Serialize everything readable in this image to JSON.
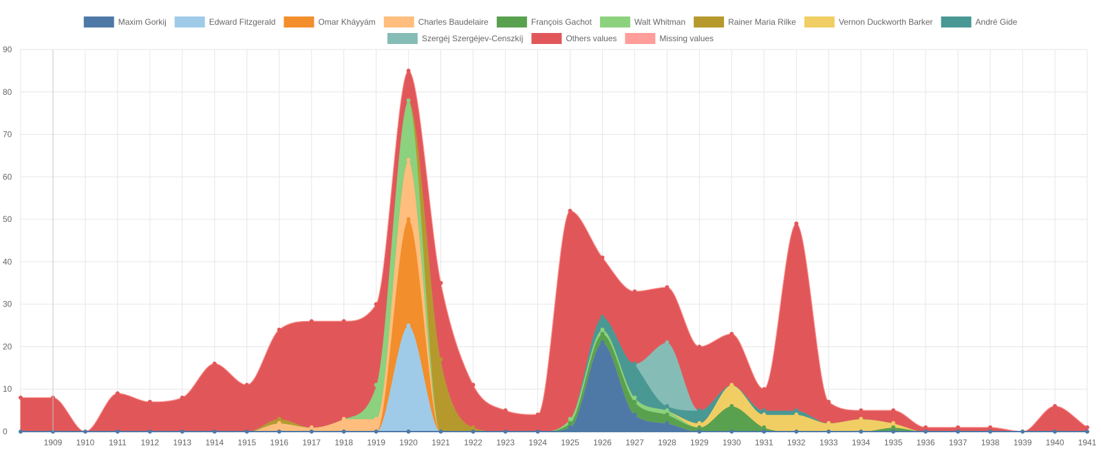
{
  "chart_data": {
    "type": "area",
    "stacked": true,
    "smooth": true,
    "x": [
      "1908",
      "1909",
      "1910",
      "1911",
      "1912",
      "1913",
      "1914",
      "1915",
      "1916",
      "1917",
      "1918",
      "1919",
      "1920",
      "1921",
      "1922",
      "1923",
      "1924",
      "1925",
      "1926",
      "1927",
      "1928",
      "1929",
      "1930",
      "1931",
      "1932",
      "1933",
      "1934",
      "1935",
      "1936",
      "1937",
      "1938",
      "1939",
      "1940",
      "1941"
    ],
    "x_tick_labels": [
      "1909",
      "1910",
      "1911",
      "1912",
      "1913",
      "1914",
      "1915",
      "1916",
      "1917",
      "1918",
      "1919",
      "1920",
      "1921",
      "1922",
      "1923",
      "1924",
      "1925",
      "1926",
      "1927",
      "1928",
      "1929",
      "1930",
      "1931",
      "1932",
      "1933",
      "1934",
      "1935",
      "1936",
      "1937",
      "1938",
      "1939",
      "1940",
      "1941"
    ],
    "ylim": [
      0,
      90
    ],
    "y_ticks": [
      "0",
      "10",
      "20",
      "30",
      "40",
      "50",
      "60",
      "70",
      "80",
      "90"
    ],
    "grid": true,
    "legend_position": "top",
    "series": [
      {
        "name": "Maxim Gorkij",
        "color": "#4e79a7",
        "values": [
          0,
          0,
          0,
          0,
          0,
          0,
          0,
          0,
          0,
          0,
          0,
          0,
          0,
          0,
          0,
          0,
          0,
          1,
          21,
          4,
          2,
          0,
          0,
          0,
          0,
          0,
          0,
          0,
          0,
          0,
          0,
          0,
          0,
          0
        ]
      },
      {
        "name": "Edward Fitzgerald",
        "color": "#a0cbe8",
        "values": [
          0,
          0,
          0,
          0,
          0,
          0,
          0,
          0,
          0,
          0,
          0,
          0,
          25,
          0,
          0,
          0,
          0,
          0,
          0,
          0,
          0,
          0,
          0,
          0,
          0,
          0,
          0,
          0,
          0,
          0,
          0,
          0,
          0,
          0
        ]
      },
      {
        "name": "Omar Kháyyám",
        "color": "#f28e2b",
        "values": [
          0,
          0,
          0,
          0,
          0,
          0,
          0,
          0,
          0,
          0,
          0,
          0,
          25,
          0,
          0,
          0,
          0,
          0,
          0,
          0,
          0,
          0,
          0,
          0,
          0,
          0,
          0,
          0,
          0,
          0,
          0,
          0,
          0,
          0
        ]
      },
      {
        "name": "Charles Baudelaire",
        "color": "#ffbe7d",
        "values": [
          0,
          0,
          0,
          0,
          0,
          0,
          0,
          0,
          2,
          1,
          3,
          3,
          14,
          0,
          0,
          0,
          0,
          0,
          0,
          0,
          0,
          0,
          0,
          0,
          0,
          0,
          0,
          0,
          0,
          0,
          0,
          0,
          0,
          0
        ]
      },
      {
        "name": "François Gachot",
        "color": "#59a14f",
        "values": [
          0,
          0,
          0,
          0,
          0,
          0,
          0,
          0,
          0,
          0,
          0,
          0,
          0,
          0,
          0,
          0,
          0,
          1,
          2,
          3,
          2,
          1,
          6,
          1,
          0,
          0,
          0,
          1,
          0,
          0,
          0,
          0,
          0,
          0
        ]
      },
      {
        "name": "Walt Whitman",
        "color": "#8cd17d",
        "values": [
          0,
          0,
          0,
          0,
          0,
          0,
          0,
          0,
          0,
          0,
          0,
          8,
          14,
          0,
          0,
          0,
          0,
          1,
          1,
          1,
          1,
          0,
          0,
          0,
          0,
          0,
          0,
          0,
          0,
          0,
          0,
          0,
          0,
          0
        ]
      },
      {
        "name": "Rainer Maria Rilke",
        "color": "#b6992d",
        "values": [
          0,
          0,
          0,
          0,
          0,
          0,
          0,
          0,
          1,
          0,
          0,
          0,
          0,
          17,
          1,
          0,
          0,
          0,
          0,
          0,
          0,
          0,
          0,
          0,
          0,
          0,
          0,
          0,
          0,
          0,
          0,
          0,
          0,
          0
        ]
      },
      {
        "name": "Vernon Duckworth Barker",
        "color": "#f1ce63",
        "values": [
          0,
          0,
          0,
          0,
          0,
          0,
          0,
          0,
          0,
          0,
          0,
          0,
          0,
          0,
          0,
          0,
          0,
          0,
          0,
          0,
          0,
          1,
          5,
          3,
          4,
          2,
          3,
          1,
          0,
          0,
          0,
          0,
          0,
          0
        ]
      },
      {
        "name": "André Gide",
        "color": "#499894",
        "values": [
          0,
          0,
          0,
          0,
          0,
          0,
          0,
          0,
          0,
          0,
          0,
          0,
          0,
          0,
          0,
          0,
          0,
          0,
          3,
          8,
          1,
          3,
          0,
          1,
          1,
          0,
          0,
          0,
          0,
          0,
          0,
          0,
          0,
          0
        ]
      },
      {
        "name": "Szergéj Szergéjev-Censzkíj",
        "color": "#86bcb6",
        "values": [
          0,
          0,
          0,
          0,
          0,
          0,
          0,
          0,
          0,
          0,
          0,
          0,
          0,
          0,
          0,
          0,
          0,
          0,
          0,
          0,
          15,
          0,
          0,
          0,
          0,
          0,
          0,
          0,
          0,
          0,
          0,
          0,
          0,
          0
        ]
      },
      {
        "name": "Others values",
        "color": "#e15759",
        "values": [
          8,
          8,
          0,
          9,
          7,
          8,
          16,
          11,
          21,
          25,
          23,
          19,
          7,
          18,
          10,
          5,
          4,
          49,
          14,
          17,
          13,
          15,
          12,
          5,
          44,
          5,
          2,
          3,
          1,
          1,
          1,
          0,
          6,
          1
        ]
      },
      {
        "name": "Missing values",
        "color": "#ff9d9a",
        "values": [
          0,
          0,
          0,
          0,
          0,
          0,
          0,
          0,
          0,
          0,
          0,
          0,
          0,
          0,
          0,
          0,
          0,
          0,
          0,
          0,
          0,
          0,
          0,
          0,
          0,
          0,
          0,
          0,
          0,
          0,
          0,
          0,
          0,
          0
        ]
      }
    ]
  }
}
